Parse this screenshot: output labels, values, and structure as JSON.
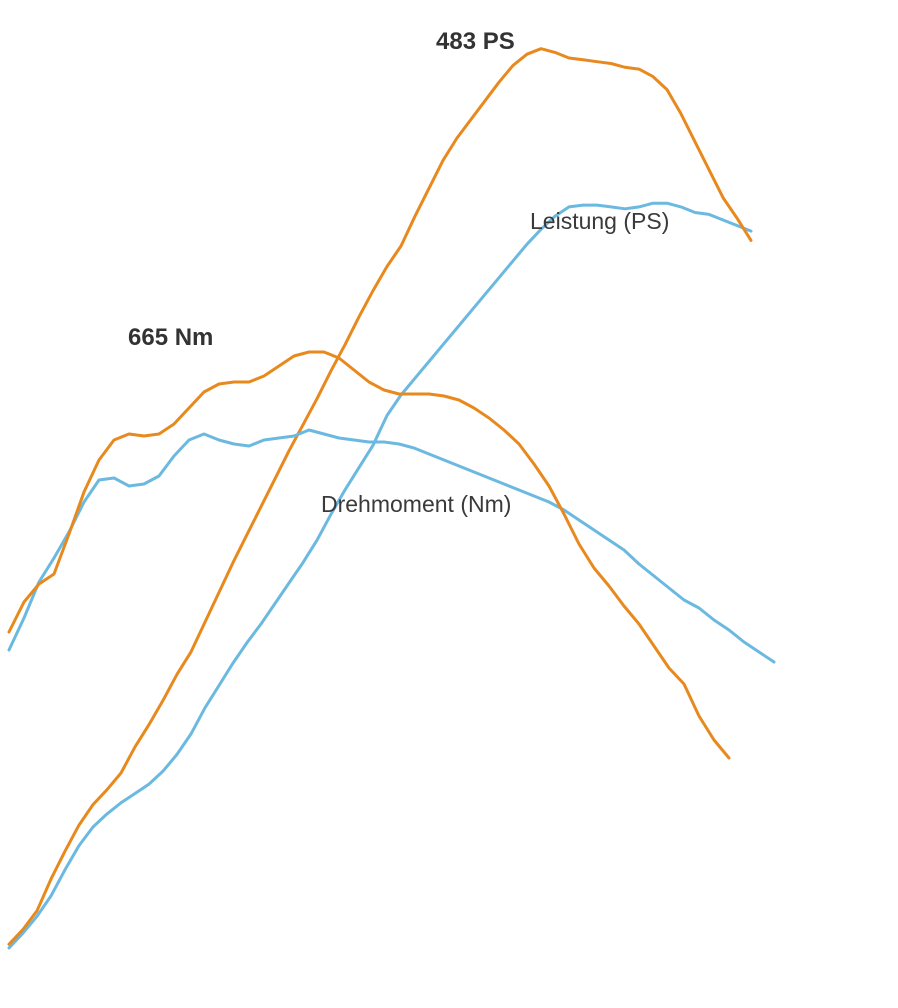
{
  "chart_data": {
    "type": "line",
    "title": "",
    "xlabel": "",
    "ylabel": "",
    "grid": false,
    "series": [
      {
        "name": "Leistung (PS)",
        "role": "power",
        "variant": "tuned",
        "color": "#E8891E",
        "values": [
          2,
          10,
          20,
          37,
          52,
          66,
          77,
          85,
          94,
          108,
          120,
          133,
          147,
          159,
          175,
          191,
          207,
          222,
          237,
          252,
          267,
          281,
          295,
          310,
          324,
          339,
          353,
          366,
          377,
          393,
          408,
          423,
          435,
          445,
          455,
          465,
          474,
          480,
          483,
          481,
          478,
          477,
          476,
          475,
          473,
          472,
          468,
          461,
          448,
          433,
          418,
          403,
          392,
          380
        ]
      },
      {
        "name": "",
        "role": "power",
        "variant": "stock",
        "color": "#6BB9E0",
        "values": [
          0,
          8,
          17,
          28,
          42,
          55,
          65,
          72,
          78,
          83,
          88,
          95,
          104,
          115,
          129,
          141,
          153,
          164,
          174,
          185,
          196,
          207,
          219,
          233,
          246,
          258,
          270,
          286,
          297,
          306,
          315,
          324,
          333,
          342,
          351,
          360,
          369,
          378,
          386,
          393,
          398,
          399,
          399,
          398,
          397,
          398,
          400,
          400,
          398,
          395,
          394,
          391,
          388,
          385
        ]
      },
      {
        "name": "Drehmoment (Nm)",
        "role": "torque",
        "variant": "tuned",
        "color": "#E8891E",
        "values": [
          518,
          533,
          542,
          547,
          567,
          588,
          604,
          614,
          617,
          616,
          617,
          622,
          630,
          638,
          642,
          643,
          643,
          646,
          651,
          656,
          658,
          658,
          655,
          649,
          643,
          639,
          637,
          637,
          637,
          636,
          634,
          630,
          625,
          619,
          612,
          602,
          591,
          577,
          562,
          550,
          541,
          531,
          522,
          511,
          500,
          492,
          476,
          464,
          455
        ]
      },
      {
        "name": "",
        "role": "torque",
        "variant": "stock",
        "color": "#6BB9E0",
        "values": [
          509,
          525,
          543,
          555,
          568,
          583,
          594,
          595,
          591,
          592,
          596,
          606,
          614,
          617,
          614,
          612,
          611,
          614,
          615,
          616,
          619,
          617,
          615,
          614,
          613,
          613,
          612,
          610,
          607,
          604,
          601,
          598,
          595,
          592,
          589,
          586,
          583,
          579,
          574,
          569,
          564,
          559,
          552,
          546,
          540,
          534,
          530,
          524,
          519,
          513,
          508,
          503
        ]
      }
    ],
    "annotations": [
      {
        "text": "483 PS",
        "series": 0
      },
      {
        "text": "665 Nm",
        "series": 2
      },
      {
        "text": "Leistung (PS)",
        "series": 0
      },
      {
        "text": "Drehmoment (Nm)",
        "series": 2
      }
    ]
  }
}
